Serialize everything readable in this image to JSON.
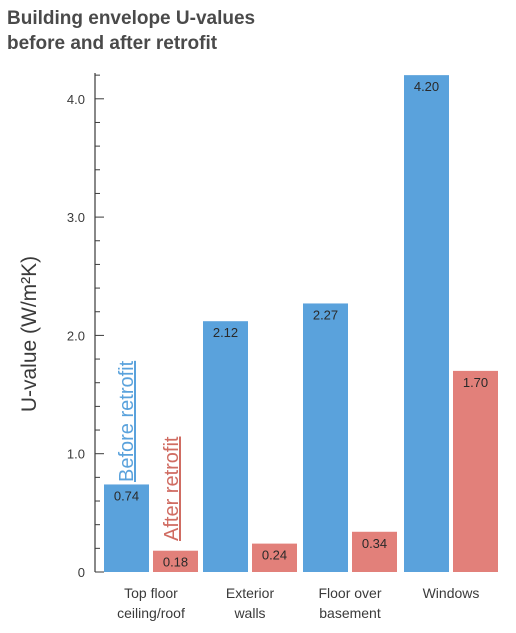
{
  "chart_data": {
    "type": "bar",
    "title_lines": [
      "Building envelope U-values",
      "before and after retrofit"
    ],
    "ylabel": "U-value (W/m²K)",
    "ylim": [
      0,
      4.2
    ],
    "yticks": [
      {
        "value": 0,
        "label": "0"
      },
      {
        "value": 1.0,
        "label": "1.0"
      },
      {
        "value": 2.0,
        "label": "2.0"
      },
      {
        "value": 3.0,
        "label": "3.0"
      },
      {
        "value": 4.0,
        "label": "4.0"
      }
    ],
    "minor_tick_step": 0.2,
    "categories": [
      [
        "Top floor",
        "ceiling/roof"
      ],
      [
        "Exterior",
        "walls"
      ],
      [
        "Floor over",
        "basement"
      ],
      [
        "Windows"
      ]
    ],
    "series": [
      {
        "name": "Before retrofit",
        "color": "#5aa2dc",
        "values": [
          0.74,
          2.12,
          2.27,
          4.2
        ],
        "labels": [
          "0.74",
          "2.12",
          "2.27",
          "4.20"
        ]
      },
      {
        "name": "After retrofit",
        "color": "#e2807a",
        "values": [
          0.18,
          0.24,
          0.34,
          1.7
        ],
        "labels": [
          "0.18",
          "0.24",
          "0.34",
          "1.70"
        ]
      }
    ],
    "legend_placement": "inline, rotated beside first category",
    "grid": false
  },
  "colors": {
    "before_text": "#5aa2dc",
    "after_text": "#d06c62",
    "axis": "#3a3a3a"
  }
}
